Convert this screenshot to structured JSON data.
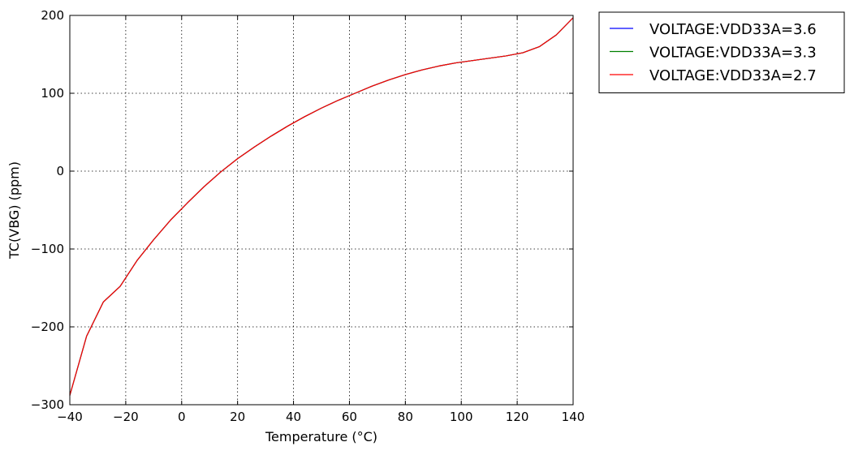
{
  "chart_data": {
    "type": "line",
    "xlabel": "Temperature (°C)",
    "ylabel": "TC(VBG) (ppm)",
    "xlim": [
      -40,
      140
    ],
    "ylim": [
      -300,
      200
    ],
    "xticks": [
      -40,
      -20,
      0,
      20,
      40,
      60,
      80,
      100,
      120,
      140
    ],
    "yticks": [
      -300,
      -200,
      -100,
      0,
      100,
      200
    ],
    "xtick_labels": [
      "−40",
      "−20",
      "0",
      "20",
      "40",
      "60",
      "80",
      "100",
      "120",
      "140"
    ],
    "ytick_labels": [
      "−300",
      "−200",
      "−100",
      "0",
      "100",
      "200"
    ],
    "grid": true,
    "legend_position": "outside-top-right",
    "x": [
      -40,
      -34,
      -28,
      -22,
      -16,
      -10,
      -4,
      2,
      8,
      14,
      20,
      26,
      32,
      38,
      44,
      50,
      56,
      62,
      68,
      74,
      80,
      86,
      92,
      98,
      104,
      110,
      116,
      122,
      128,
      134,
      140
    ],
    "series": [
      {
        "name": "VOLTAGE:VDD33A=3.6",
        "color": "#0000ff",
        "values": [
          -288,
          -212,
          -168,
          -148,
          -115,
          -88,
          -63,
          -41,
          -20,
          -1,
          16,
          31,
          45,
          58,
          70,
          81,
          91,
          100,
          109,
          117,
          124,
          130,
          135,
          139,
          142,
          145,
          148,
          152,
          160,
          175,
          197
        ]
      },
      {
        "name": "VOLTAGE:VDD33A=3.3",
        "color": "#008000",
        "values": [
          -288,
          -212,
          -168,
          -148,
          -115,
          -88,
          -63,
          -41,
          -20,
          -1,
          16,
          31,
          45,
          58,
          70,
          81,
          91,
          100,
          109,
          117,
          124,
          130,
          135,
          139,
          142,
          145,
          148,
          152,
          160,
          175,
          197
        ]
      },
      {
        "name": "VOLTAGE:VDD33A=2.7",
        "color": "#ff0000",
        "values": [
          -288,
          -212,
          -168,
          -148,
          -115,
          -88,
          -63,
          -41,
          -20,
          -1,
          16,
          31,
          45,
          58,
          70,
          81,
          91,
          100,
          109,
          117,
          124,
          130,
          135,
          139,
          142,
          145,
          148,
          152,
          160,
          175,
          197
        ]
      }
    ]
  }
}
